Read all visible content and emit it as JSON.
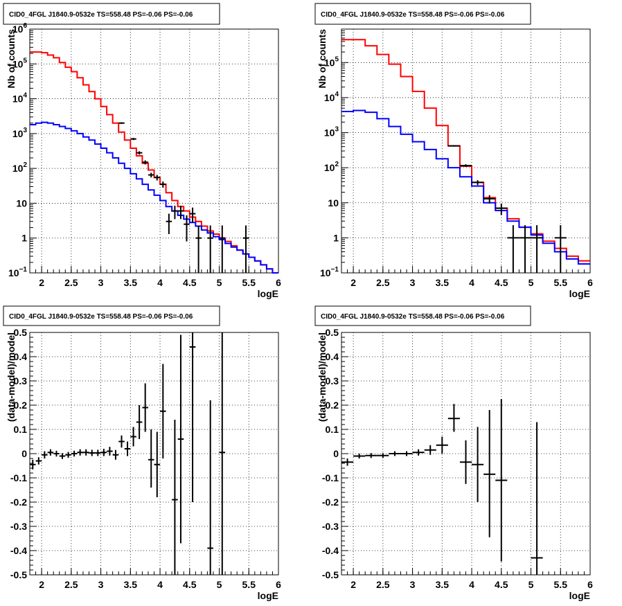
{
  "chart_data": [
    {
      "type": "step-histogram",
      "title": "CID0_4FGL J1840.9-0532e TS=558.48 PS=-0.06 PS=-0.06",
      "xlabel": "logE",
      "ylabel": "Nb of counts",
      "xlim": [
        1.8,
        6.0
      ],
      "ylim": [
        0.1,
        1000000
      ],
      "yscale": "log",
      "grid": true,
      "xticks": [
        2,
        2.5,
        3,
        3.5,
        4,
        4.5,
        5,
        5.5,
        6
      ],
      "yticks": [
        {
          "v": 0.1,
          "base": "10",
          "exp": "−1"
        },
        {
          "v": 1,
          "label": "1"
        },
        {
          "v": 10,
          "label": "10"
        },
        {
          "v": 100,
          "base": "10",
          "exp": "2"
        },
        {
          "v": 1000,
          "base": "10",
          "exp": "3"
        },
        {
          "v": 10000,
          "base": "10",
          "exp": "4"
        },
        {
          "v": 100000,
          "base": "10",
          "exp": "5"
        },
        {
          "v": 1000000,
          "base": "10",
          "exp": "6"
        }
      ],
      "edges": [
        1.8,
        1.9,
        2.0,
        2.1,
        2.2,
        2.3,
        2.4,
        2.5,
        2.6,
        2.7,
        2.8,
        2.9,
        3.0,
        3.1,
        3.2,
        3.3,
        3.4,
        3.5,
        3.6,
        3.7,
        3.8,
        3.9,
        4.0,
        4.1,
        4.2,
        4.3,
        4.4,
        4.5,
        4.6,
        4.7,
        4.8,
        4.9,
        5.0,
        5.1,
        5.2,
        5.3,
        5.4,
        5.5,
        5.6,
        5.7,
        5.8,
        5.9,
        6.0
      ],
      "series": [
        {
          "color": "#ff0000",
          "values": [
            220000,
            220000,
            210000,
            180000,
            150000,
            110000,
            80000,
            60000,
            40000,
            25000,
            16000,
            10000,
            6000,
            3500,
            2000,
            1100,
            650,
            380,
            230,
            140,
            90,
            55,
            35,
            20,
            12,
            8,
            6,
            4,
            3,
            2.2,
            1.6,
            1.3,
            1.0,
            0.8,
            0.6,
            0.45,
            0.35,
            0.28,
            0.22,
            0.17,
            0.13,
            0.1
          ]
        },
        {
          "color": "#0000ff",
          "values": [
            1800,
            2000,
            2100,
            2000,
            1800,
            1600,
            1400,
            1200,
            1000,
            800,
            650,
            500,
            380,
            280,
            200,
            140,
            100,
            70,
            50,
            35,
            24,
            17,
            12,
            8,
            6,
            4.5,
            3.5,
            2.8,
            2.2,
            1.7,
            1.4,
            1.1,
            0.9,
            0.7,
            0.55,
            0.45,
            0.35,
            0.28,
            0.22,
            0.17,
            0.13,
            0.1
          ]
        }
      ],
      "data_points": [
        {
          "x": 3.35,
          "y": 2000,
          "xerr": 0.05,
          "lo": 1900,
          "hi": 2100
        },
        {
          "x": 3.55,
          "y": 700,
          "xerr": 0.05,
          "lo": 650,
          "hi": 750
        },
        {
          "x": 3.65,
          "y": 280,
          "xerr": 0.05,
          "lo": 250,
          "hi": 310
        },
        {
          "x": 3.75,
          "y": 150,
          "xerr": 0.05,
          "lo": 130,
          "hi": 170
        },
        {
          "x": 3.85,
          "y": 65,
          "xerr": 0.05,
          "lo": 55,
          "hi": 75
        },
        {
          "x": 3.95,
          "y": 55,
          "xerr": 0.05,
          "lo": 45,
          "hi": 65
        },
        {
          "x": 4.05,
          "y": 35,
          "xerr": 0.05,
          "lo": 28,
          "hi": 42
        },
        {
          "x": 4.15,
          "y": 3,
          "xerr": 0.05,
          "lo": 1.3,
          "hi": 5
        },
        {
          "x": 4.25,
          "y": 6,
          "xerr": 0.05,
          "lo": 3.5,
          "hi": 8.5
        },
        {
          "x": 4.35,
          "y": 6,
          "xerr": 0.05,
          "lo": 3.5,
          "hi": 8.5
        },
        {
          "x": 4.45,
          "y": 2.5,
          "xerr": 0.05,
          "lo": 0.8,
          "hi": 4.5
        },
        {
          "x": 4.55,
          "y": 5,
          "xerr": 0.05,
          "lo": 2.8,
          "hi": 7.5
        },
        {
          "x": 4.65,
          "y": 1,
          "xerr": 0.05,
          "lo": 0.1,
          "hi": 2.3
        },
        {
          "x": 4.85,
          "y": 1,
          "xerr": 0.05,
          "lo": 0.1,
          "hi": 2.3
        },
        {
          "x": 5.05,
          "y": 1,
          "xerr": 0.05,
          "lo": 0.1,
          "hi": 2.3
        },
        {
          "x": 5.45,
          "y": 1,
          "xerr": 0.05,
          "lo": 0.1,
          "hi": 2.3
        }
      ]
    },
    {
      "type": "step-histogram",
      "title": "CID0_4FGL J1840.9-0532e TS=558.48 PS=-0.06 PS=-0.06",
      "xlabel": "logE",
      "ylabel": "Nb of counts",
      "xlim": [
        1.8,
        6.0
      ],
      "ylim": [
        0.1,
        900000
      ],
      "yscale": "log",
      "grid": true,
      "xticks": [
        2,
        2.5,
        3,
        3.5,
        4,
        4.5,
        5,
        5.5,
        6
      ],
      "yticks": [
        {
          "v": 0.1,
          "base": "10",
          "exp": "−1"
        },
        {
          "v": 1,
          "label": "1"
        },
        {
          "v": 10,
          "label": "10"
        },
        {
          "v": 100,
          "base": "10",
          "exp": "2"
        },
        {
          "v": 1000,
          "base": "10",
          "exp": "3"
        },
        {
          "v": 10000,
          "base": "10",
          "exp": "4"
        },
        {
          "v": 100000,
          "base": "10",
          "exp": "5"
        }
      ],
      "edges": [
        1.8,
        2.0,
        2.2,
        2.4,
        2.6,
        2.8,
        3.0,
        3.2,
        3.4,
        3.6,
        3.8,
        4.0,
        4.2,
        4.4,
        4.6,
        4.8,
        5.0,
        5.2,
        5.4,
        5.6,
        5.8,
        6.0
      ],
      "series": [
        {
          "color": "#ff0000",
          "values": [
            450000,
            450000,
            300000,
            170000,
            90000,
            40000,
            15000,
            5000,
            1600,
            420,
            110,
            38,
            14,
            7,
            3.5,
            2,
            1.3,
            0.8,
            0.5,
            0.3,
            0.22
          ]
        },
        {
          "color": "#0000ff",
          "values": [
            4000,
            4300,
            3800,
            2500,
            1500,
            900,
            550,
            330,
            180,
            100,
            55,
            30,
            10,
            6,
            3,
            2,
            1.2,
            0.7,
            0.4,
            0.25,
            0.18
          ]
        }
      ],
      "data_points": [
        {
          "x": 3.7,
          "y": 420,
          "xerr": 0.1,
          "lo": 400,
          "hi": 440
        },
        {
          "x": 3.9,
          "y": 115,
          "xerr": 0.1,
          "lo": 105,
          "hi": 125
        },
        {
          "x": 4.1,
          "y": 38,
          "xerr": 0.1,
          "lo": 32,
          "hi": 44
        },
        {
          "x": 4.3,
          "y": 13,
          "xerr": 0.1,
          "lo": 9.5,
          "hi": 16.5
        },
        {
          "x": 4.5,
          "y": 7,
          "xerr": 0.1,
          "lo": 4.5,
          "hi": 9.5
        },
        {
          "x": 4.7,
          "y": 1,
          "xerr": 0.1,
          "lo": 0.1,
          "hi": 2.3
        },
        {
          "x": 4.9,
          "y": 1,
          "xerr": 0.1,
          "lo": 0.1,
          "hi": 2.3
        },
        {
          "x": 5.1,
          "y": 1,
          "xerr": 0.1,
          "lo": 0.1,
          "hi": 2.3
        },
        {
          "x": 5.5,
          "y": 1,
          "xerr": 0.1,
          "lo": 0.1,
          "hi": 2.3
        }
      ]
    },
    {
      "type": "scatter-errorbars",
      "title": "CID0_4FGL J1840.9-0532e TS=558.48 PS=-0.06 PS=-0.06",
      "xlabel": "logE",
      "ylabel": "(data-model)/model",
      "xlim": [
        1.8,
        6.0
      ],
      "ylim": [
        -0.5,
        0.5
      ],
      "grid": true,
      "xticks": [
        2,
        2.5,
        3,
        3.5,
        4,
        4.5,
        5,
        5.5,
        6
      ],
      "yticks": [
        -0.5,
        -0.4,
        -0.3,
        -0.2,
        -0.1,
        0,
        0.1,
        0.2,
        0.3,
        0.4,
        0.5
      ],
      "data_points": [
        {
          "x": 1.85,
          "y": -0.045,
          "xerr": 0.05,
          "lo": -0.065,
          "hi": -0.025
        },
        {
          "x": 1.95,
          "y": -0.03,
          "xerr": 0.05,
          "lo": -0.045,
          "hi": -0.015
        },
        {
          "x": 2.05,
          "y": -0.005,
          "xerr": 0.05,
          "lo": -0.02,
          "hi": 0.01
        },
        {
          "x": 2.15,
          "y": 0.005,
          "xerr": 0.05,
          "lo": -0.008,
          "hi": 0.018
        },
        {
          "x": 2.25,
          "y": 0.0,
          "xerr": 0.05,
          "lo": -0.012,
          "hi": 0.012
        },
        {
          "x": 2.35,
          "y": -0.01,
          "xerr": 0.05,
          "lo": -0.022,
          "hi": 0.002
        },
        {
          "x": 2.45,
          "y": -0.005,
          "xerr": 0.05,
          "lo": -0.017,
          "hi": 0.007
        },
        {
          "x": 2.55,
          "y": 0.0,
          "xerr": 0.05,
          "lo": -0.012,
          "hi": 0.012
        },
        {
          "x": 2.65,
          "y": 0.005,
          "xerr": 0.05,
          "lo": -0.008,
          "hi": 0.018
        },
        {
          "x": 2.75,
          "y": 0.005,
          "xerr": 0.05,
          "lo": -0.008,
          "hi": 0.018
        },
        {
          "x": 2.85,
          "y": 0.003,
          "xerr": 0.05,
          "lo": -0.01,
          "hi": 0.016
        },
        {
          "x": 2.95,
          "y": 0.003,
          "xerr": 0.05,
          "lo": -0.01,
          "hi": 0.016
        },
        {
          "x": 3.05,
          "y": 0.005,
          "xerr": 0.05,
          "lo": -0.01,
          "hi": 0.02
        },
        {
          "x": 3.15,
          "y": 0.01,
          "xerr": 0.05,
          "lo": -0.008,
          "hi": 0.028
        },
        {
          "x": 3.25,
          "y": -0.005,
          "xerr": 0.05,
          "lo": -0.025,
          "hi": 0.015
        },
        {
          "x": 3.35,
          "y": 0.05,
          "xerr": 0.05,
          "lo": 0.025,
          "hi": 0.075
        },
        {
          "x": 3.45,
          "y": 0.02,
          "xerr": 0.05,
          "lo": -0.01,
          "hi": 0.05
        },
        {
          "x": 3.55,
          "y": 0.07,
          "xerr": 0.05,
          "lo": 0.03,
          "hi": 0.11
        },
        {
          "x": 3.65,
          "y": 0.13,
          "xerr": 0.05,
          "lo": 0.06,
          "hi": 0.2
        },
        {
          "x": 3.75,
          "y": 0.19,
          "xerr": 0.05,
          "lo": 0.09,
          "hi": 0.29
        },
        {
          "x": 3.85,
          "y": -0.025,
          "xerr": 0.05,
          "lo": -0.14,
          "hi": 0.1
        },
        {
          "x": 3.95,
          "y": -0.045,
          "xerr": 0.05,
          "lo": -0.18,
          "hi": 0.09
        },
        {
          "x": 4.05,
          "y": 0.175,
          "xerr": 0.05,
          "lo": -0.02,
          "hi": 0.37
        },
        {
          "x": 4.25,
          "y": -0.19,
          "xerr": 0.05,
          "lo": -0.5,
          "hi": 0.14
        },
        {
          "x": 4.35,
          "y": 0.06,
          "xerr": 0.05,
          "lo": -0.37,
          "hi": 0.49
        },
        {
          "x": 4.55,
          "y": 0.44,
          "xerr": 0.05,
          "lo": -0.2,
          "hi": 0.5
        },
        {
          "x": 4.85,
          "y": -0.39,
          "xerr": 0.05,
          "lo": -0.5,
          "hi": 0.22
        },
        {
          "x": 5.05,
          "y": 0.005,
          "xerr": 0.05,
          "lo": -0.5,
          "hi": 0.5
        }
      ]
    },
    {
      "type": "scatter-errorbars",
      "title": "CID0_4FGL J1840.9-0532e TS=558.48 PS=-0.06 PS=-0.06",
      "xlabel": "logE",
      "ylabel": "(data-model)/model",
      "xlim": [
        1.8,
        6.0
      ],
      "ylim": [
        -0.5,
        0.5
      ],
      "grid": true,
      "xticks": [
        2,
        2.5,
        3,
        3.5,
        4,
        4.5,
        5,
        5.5,
        6
      ],
      "yticks": [
        -0.5,
        -0.4,
        -0.3,
        -0.2,
        -0.1,
        0,
        0.1,
        0.2,
        0.3,
        0.4,
        0.5
      ],
      "data_points": [
        {
          "x": 1.9,
          "y": -0.035,
          "xerr": 0.1,
          "lo": -0.05,
          "hi": -0.02
        },
        {
          "x": 2.1,
          "y": -0.01,
          "xerr": 0.1,
          "lo": -0.02,
          "hi": 0.0
        },
        {
          "x": 2.3,
          "y": -0.008,
          "xerr": 0.1,
          "lo": -0.018,
          "hi": 0.002
        },
        {
          "x": 2.5,
          "y": -0.008,
          "xerr": 0.1,
          "lo": -0.018,
          "hi": 0.002
        },
        {
          "x": 2.7,
          "y": 0.0,
          "xerr": 0.1,
          "lo": -0.01,
          "hi": 0.01
        },
        {
          "x": 2.9,
          "y": 0.0,
          "xerr": 0.1,
          "lo": -0.01,
          "hi": 0.01
        },
        {
          "x": 3.1,
          "y": 0.005,
          "xerr": 0.1,
          "lo": -0.008,
          "hi": 0.018
        },
        {
          "x": 3.3,
          "y": 0.015,
          "xerr": 0.1,
          "lo": -0.005,
          "hi": 0.035
        },
        {
          "x": 3.5,
          "y": 0.035,
          "xerr": 0.1,
          "lo": 0.0,
          "hi": 0.07
        },
        {
          "x": 3.7,
          "y": 0.145,
          "xerr": 0.1,
          "lo": 0.09,
          "hi": 0.205
        },
        {
          "x": 3.9,
          "y": -0.035,
          "xerr": 0.1,
          "lo": -0.125,
          "hi": 0.055
        },
        {
          "x": 4.1,
          "y": -0.045,
          "xerr": 0.1,
          "lo": -0.2,
          "hi": 0.11
        },
        {
          "x": 4.3,
          "y": -0.085,
          "xerr": 0.1,
          "lo": -0.345,
          "hi": 0.18
        },
        {
          "x": 4.5,
          "y": -0.11,
          "xerr": 0.1,
          "lo": -0.445,
          "hi": 0.225
        },
        {
          "x": 5.1,
          "y": -0.43,
          "xerr": 0.1,
          "lo": -0.5,
          "hi": 0.13
        }
      ]
    }
  ]
}
